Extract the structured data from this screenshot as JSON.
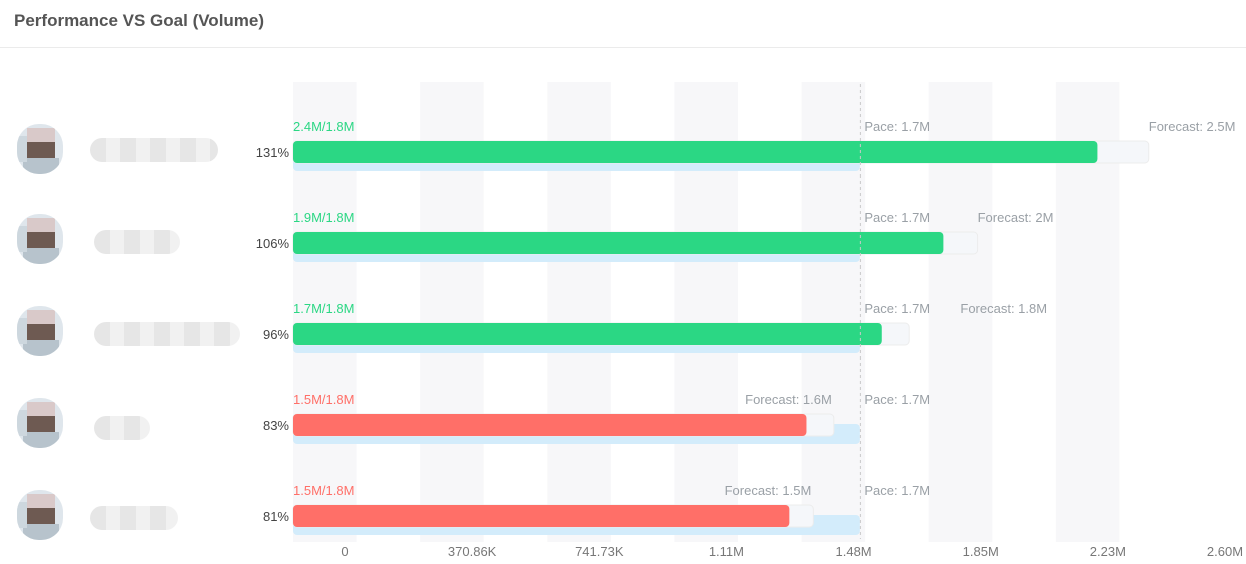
{
  "header": {
    "title": "Performance VS Goal (Volume)"
  },
  "colors": {
    "above_goal": "#2bd784",
    "below_goal": "#ff6f68",
    "goal_track": "#d3ecfb",
    "forecast_track": "#f5f7fa",
    "label_muted": "#9aa0a6",
    "text": "#444444"
  },
  "chart_data": {
    "type": "bar",
    "orientation": "horizontal",
    "title": "Performance VS Goal (Volume)",
    "x_ticks": [
      "0",
      "370.86K",
      "741.73K",
      "1.11M",
      "1.48M",
      "1.85M",
      "2.23M",
      "2.60M"
    ],
    "xlim": [
      0,
      2600000
    ],
    "grid": "vertical bands",
    "rows": [
      {
        "percent": "131%",
        "label": "2.4M/1.8M",
        "actual": 2350000,
        "goal": 1800000,
        "pace_label": "Pace: 1.7M",
        "pace": 1700000,
        "forecast_label": "Forecast: 2.5M",
        "forecast": 2500000,
        "status": "above"
      },
      {
        "percent": "106%",
        "label": "1.9M/1.8M",
        "actual": 1900000,
        "goal": 1800000,
        "pace_label": "Pace: 1.7M",
        "pace": 1700000,
        "forecast_label": "Forecast: 2M",
        "forecast": 2000000,
        "status": "above"
      },
      {
        "percent": "96%",
        "label": "1.7M/1.8M",
        "actual": 1720000,
        "goal": 1800000,
        "pace_label": "Pace: 1.7M",
        "pace": 1700000,
        "forecast_label": "Forecast: 1.8M",
        "forecast": 1800000,
        "status": "above"
      },
      {
        "percent": "83%",
        "label": "1.5M/1.8M",
        "actual": 1500000,
        "goal": 1800000,
        "pace_label": "Pace: 1.7M",
        "pace": 1700000,
        "forecast_label": "Forecast: 1.6M",
        "forecast": 1580000,
        "status": "below"
      },
      {
        "percent": "81%",
        "label": "1.5M/1.8M",
        "actual": 1450000,
        "goal": 1800000,
        "pace_label": "Pace: 1.7M",
        "pace": 1700000,
        "forecast_label": "Forecast: 1.5M",
        "forecast": 1520000,
        "status": "below"
      }
    ]
  }
}
